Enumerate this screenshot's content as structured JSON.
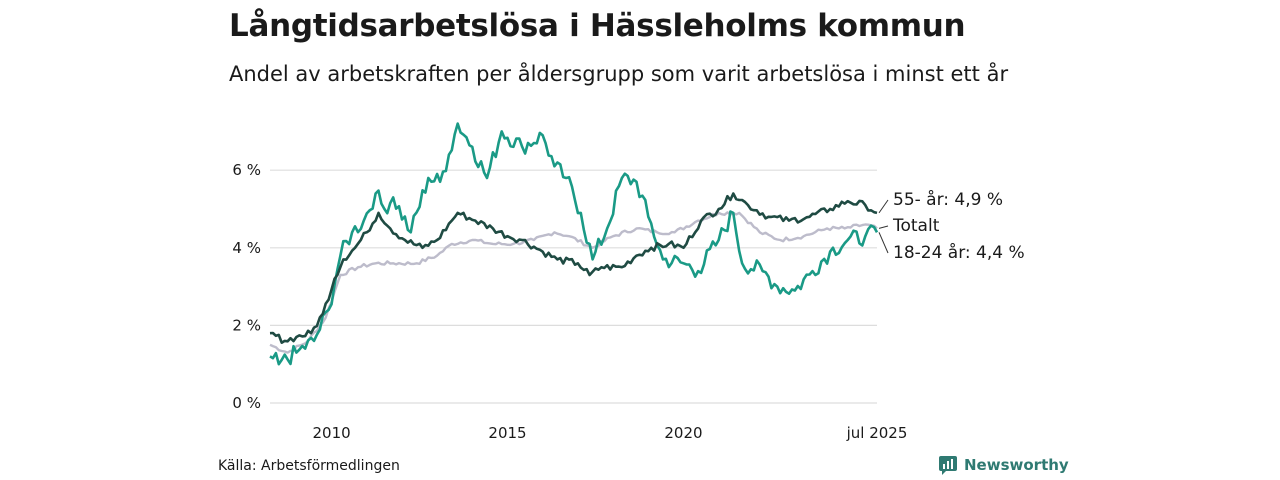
{
  "title": "Långtidsarbetslösa i Hässleholms kommun",
  "subtitle": "Andel av arbetskraften per åldersgrupp som varit arbetslösa i minst ett år",
  "source": "Källa: Arbetsförmedlingen",
  "brand": {
    "name": "Newsworthy",
    "icon": "newsworthy-logo-icon"
  },
  "colors": {
    "age55": "#1f4b43",
    "age18_24": "#1a9a86",
    "total": "#bdbccb",
    "grid": "#dddddd"
  },
  "chart_data": {
    "type": "line",
    "x_start": "2008-04",
    "x_end": "2025-07",
    "xlim": [
      "2008-04",
      "2025-07"
    ],
    "ylim": [
      0,
      7.5
    ],
    "y_ticks": [
      0,
      2,
      4,
      6
    ],
    "y_tick_labels": [
      "0 %",
      "2 %",
      "4 %",
      "6 %"
    ],
    "x_ticks": [
      "2010-01",
      "2015-01",
      "2020-01",
      "2025-07"
    ],
    "x_tick_labels": [
      "2010",
      "2015",
      "2020",
      "jul 2025"
    ],
    "grid": true,
    "series": [
      {
        "name": "55- år",
        "end_label": "55- år: 4,9 %",
        "color": "#1f4b43",
        "anchors": [
          [
            "2008-04",
            1.8
          ],
          [
            "2008-09",
            1.6
          ],
          [
            "2009-01",
            1.7
          ],
          [
            "2009-06",
            1.8
          ],
          [
            "2009-10",
            2.3
          ],
          [
            "2010-02",
            3.2
          ],
          [
            "2010-05",
            3.7
          ],
          [
            "2010-09",
            4.0
          ],
          [
            "2011-01",
            4.4
          ],
          [
            "2011-05",
            4.9
          ],
          [
            "2011-09",
            4.5
          ],
          [
            "2012-02",
            4.2
          ],
          [
            "2012-08",
            4.0
          ],
          [
            "2013-01",
            4.2
          ],
          [
            "2013-06",
            4.7
          ],
          [
            "2013-08",
            4.9
          ],
          [
            "2014-02",
            4.7
          ],
          [
            "2014-08",
            4.5
          ],
          [
            "2015-01",
            4.3
          ],
          [
            "2015-06",
            4.2
          ],
          [
            "2016-01",
            3.9
          ],
          [
            "2016-06",
            3.7
          ],
          [
            "2017-01",
            3.6
          ],
          [
            "2017-05",
            3.3
          ],
          [
            "2017-09",
            3.5
          ],
          [
            "2018-04",
            3.5
          ],
          [
            "2018-09",
            3.8
          ],
          [
            "2019-02",
            4.0
          ],
          [
            "2019-08",
            4.1
          ],
          [
            "2020-01",
            4.0
          ],
          [
            "2020-07",
            4.7
          ],
          [
            "2021-01",
            5.0
          ],
          [
            "2021-06",
            5.4
          ],
          [
            "2021-11",
            5.1
          ],
          [
            "2022-06",
            4.8
          ],
          [
            "2023-01",
            4.7
          ],
          [
            "2023-08",
            4.8
          ],
          [
            "2024-03",
            5.0
          ],
          [
            "2024-09",
            5.2
          ],
          [
            "2025-03",
            5.1
          ],
          [
            "2025-07",
            4.9
          ]
        ]
      },
      {
        "name": "18-24 år",
        "end_label": "18-24 år: 4,4 %",
        "color": "#1a9a86",
        "anchors": [
          [
            "2008-04",
            1.2
          ],
          [
            "2008-07",
            1.0
          ],
          [
            "2009-01",
            1.3
          ],
          [
            "2009-07",
            1.6
          ],
          [
            "2009-12",
            2.4
          ],
          [
            "2010-04",
            3.8
          ],
          [
            "2010-08",
            4.4
          ],
          [
            "2010-12",
            4.7
          ],
          [
            "2011-04",
            5.4
          ],
          [
            "2011-07",
            5.0
          ],
          [
            "2011-10",
            5.3
          ],
          [
            "2012-04",
            4.4
          ],
          [
            "2012-10",
            5.8
          ],
          [
            "2013-02",
            5.7
          ],
          [
            "2013-05",
            6.4
          ],
          [
            "2013-08",
            7.2
          ],
          [
            "2014-01",
            6.6
          ],
          [
            "2014-06",
            5.8
          ],
          [
            "2014-11",
            7.0
          ],
          [
            "2015-06",
            6.6
          ],
          [
            "2016-01",
            6.9
          ],
          [
            "2016-05",
            6.1
          ],
          [
            "2016-09",
            5.8
          ],
          [
            "2017-02",
            4.9
          ],
          [
            "2017-06",
            3.7
          ],
          [
            "2017-11",
            4.5
          ],
          [
            "2018-04",
            5.8
          ],
          [
            "2018-09",
            5.7
          ],
          [
            "2019-01",
            4.8
          ],
          [
            "2019-06",
            3.7
          ],
          [
            "2020-01",
            3.6
          ],
          [
            "2020-06",
            3.4
          ],
          [
            "2021-01",
            4.2
          ],
          [
            "2021-06",
            4.9
          ],
          [
            "2021-09",
            3.6
          ],
          [
            "2022-04",
            3.4
          ],
          [
            "2022-09",
            3.0
          ],
          [
            "2023-03",
            2.9
          ],
          [
            "2023-09",
            3.4
          ],
          [
            "2024-03",
            3.9
          ],
          [
            "2024-09",
            4.2
          ],
          [
            "2025-03",
            4.3
          ],
          [
            "2025-07",
            4.4
          ]
        ]
      },
      {
        "name": "Totalt",
        "end_label": "Totalt",
        "color": "#bdbccb",
        "anchors": [
          [
            "2008-04",
            1.5
          ],
          [
            "2008-10",
            1.3
          ],
          [
            "2009-05",
            1.6
          ],
          [
            "2009-11",
            2.2
          ],
          [
            "2010-04",
            3.3
          ],
          [
            "2010-10",
            3.5
          ],
          [
            "2011-04",
            3.6
          ],
          [
            "2011-10",
            3.6
          ],
          [
            "2012-06",
            3.6
          ],
          [
            "2013-01",
            3.8
          ],
          [
            "2013-06",
            4.1
          ],
          [
            "2014-01",
            4.2
          ],
          [
            "2014-08",
            4.1
          ],
          [
            "2015-03",
            4.1
          ],
          [
            "2015-10",
            4.2
          ],
          [
            "2016-05",
            4.4
          ],
          [
            "2016-10",
            4.3
          ],
          [
            "2017-06",
            4.0
          ],
          [
            "2018-01",
            4.3
          ],
          [
            "2018-09",
            4.5
          ],
          [
            "2019-04",
            4.4
          ],
          [
            "2019-10",
            4.4
          ],
          [
            "2020-06",
            4.7
          ],
          [
            "2021-01",
            4.9
          ],
          [
            "2021-08",
            4.9
          ],
          [
            "2022-03",
            4.4
          ],
          [
            "2022-10",
            4.2
          ],
          [
            "2023-06",
            4.3
          ],
          [
            "2024-02",
            4.5
          ],
          [
            "2024-08",
            4.5
          ],
          [
            "2025-03",
            4.6
          ],
          [
            "2025-07",
            4.5
          ]
        ]
      }
    ]
  }
}
